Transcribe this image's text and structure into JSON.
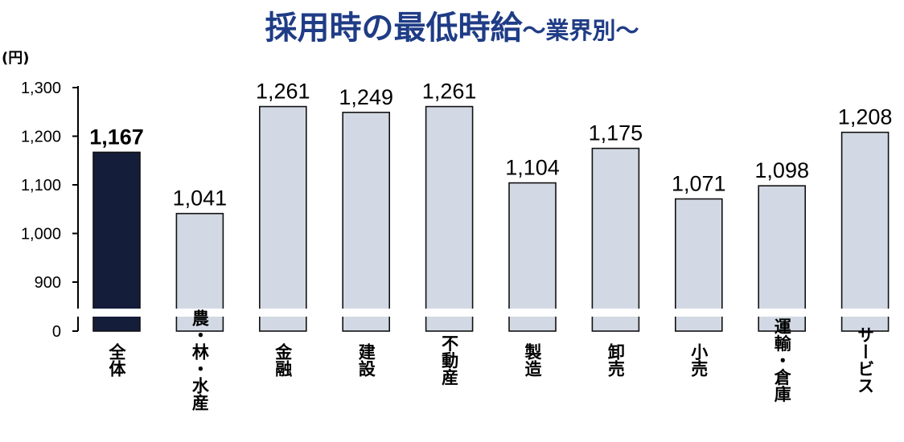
{
  "chart_data": {
    "type": "bar",
    "title": "採用時の最低時給",
    "subtitle": "～業界別～",
    "ylabel": "(円)",
    "categories": [
      "全体",
      "農・林・水産",
      "金融",
      "建設",
      "不動産",
      "製造",
      "卸売",
      "小売",
      "運輸・倉庫",
      "サービス"
    ],
    "values": [
      1167,
      1041,
      1261,
      1249,
      1261,
      1104,
      1175,
      1071,
      1098,
      1208
    ],
    "value_labels": [
      "1,167",
      "1,041",
      "1,261",
      "1,249",
      "1,261",
      "1,104",
      "1,175",
      "1,071",
      "1,098",
      "1,208"
    ],
    "y_ticks": [
      "0",
      "900",
      "1,000",
      "1,100",
      "1,200",
      "1,300"
    ],
    "ylim": [
      0,
      1300
    ],
    "axis_break": true,
    "grid": false,
    "highlight_category": "全体",
    "colors": {
      "highlight": "#141d3a",
      "bar": "#d3d9e4",
      "bar_edge": "#111111",
      "title": "#1f3c86"
    }
  }
}
